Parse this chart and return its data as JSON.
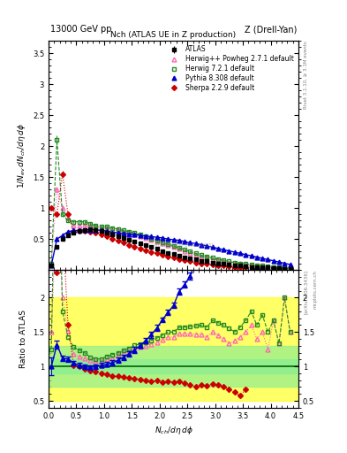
{
  "title_top_left": "13000 GeV pp",
  "title_top_right": "Z (Drell-Yan)",
  "plot_title": "Nch (ATLAS UE in Z production)",
  "xlabel": "$N_{ch}/d\\eta\\,d\\phi$",
  "ylabel_main": "$1/N_{ev}\\,dN_{ch}/d\\eta\\,d\\phi$",
  "ylabel_ratio": "Ratio to ATLAS",
  "right_label1": "Rivet 3.1.10, ≥ 3.1M events",
  "right_label2": "[arXiv:1306.3436]",
  "right_label3": "mcplots.cern.ch",
  "watermark": "ATL-PHYS-PUB-2021-736531",
  "xlim": [
    0,
    4.5
  ],
  "ylim_main": [
    0,
    3.7
  ],
  "ylim_ratio": [
    0.4,
    2.4
  ],
  "atlas_x": [
    0.05,
    0.15,
    0.25,
    0.35,
    0.45,
    0.55,
    0.65,
    0.75,
    0.85,
    0.95,
    1.05,
    1.15,
    1.25,
    1.35,
    1.45,
    1.55,
    1.65,
    1.75,
    1.85,
    1.95,
    2.05,
    2.15,
    2.25,
    2.35,
    2.45,
    2.55,
    2.65,
    2.75,
    2.85,
    2.95,
    3.05,
    3.15,
    3.25,
    3.35,
    3.45,
    3.55,
    3.65,
    3.75,
    3.85,
    3.95,
    4.05,
    4.15,
    4.25,
    4.35
  ],
  "atlas_y": [
    0.08,
    0.38,
    0.5,
    0.56,
    0.61,
    0.63,
    0.65,
    0.66,
    0.65,
    0.63,
    0.61,
    0.58,
    0.55,
    0.52,
    0.49,
    0.46,
    0.43,
    0.4,
    0.37,
    0.34,
    0.31,
    0.28,
    0.26,
    0.23,
    0.21,
    0.19,
    0.17,
    0.15,
    0.14,
    0.12,
    0.11,
    0.1,
    0.09,
    0.08,
    0.07,
    0.06,
    0.05,
    0.05,
    0.04,
    0.04,
    0.03,
    0.03,
    0.02,
    0.02
  ],
  "atlas_yerr": [
    0.008,
    0.015,
    0.015,
    0.015,
    0.015,
    0.015,
    0.015,
    0.015,
    0.015,
    0.015,
    0.012,
    0.012,
    0.012,
    0.012,
    0.012,
    0.01,
    0.01,
    0.01,
    0.01,
    0.01,
    0.008,
    0.008,
    0.008,
    0.008,
    0.008,
    0.006,
    0.006,
    0.006,
    0.006,
    0.006,
    0.005,
    0.005,
    0.005,
    0.005,
    0.005,
    0.004,
    0.004,
    0.004,
    0.004,
    0.004,
    0.003,
    0.003,
    0.003,
    0.003
  ],
  "hp_x": [
    0.05,
    0.15,
    0.25,
    0.35,
    0.45,
    0.55,
    0.65,
    0.75,
    0.85,
    0.95,
    1.05,
    1.15,
    1.25,
    1.35,
    1.45,
    1.55,
    1.65,
    1.75,
    1.85,
    1.95,
    2.05,
    2.15,
    2.25,
    2.35,
    2.45,
    2.55,
    2.65,
    2.75,
    2.85,
    2.95,
    3.05,
    3.15,
    3.25,
    3.35,
    3.45,
    3.55,
    3.65,
    3.75,
    3.85,
    3.95,
    4.05,
    4.15,
    4.25,
    4.35
  ],
  "hp_y": [
    0.12,
    1.3,
    1.0,
    0.85,
    0.72,
    0.72,
    0.73,
    0.72,
    0.7,
    0.68,
    0.67,
    0.65,
    0.64,
    0.62,
    0.6,
    0.58,
    0.55,
    0.52,
    0.49,
    0.46,
    0.43,
    0.4,
    0.37,
    0.34,
    0.31,
    0.28,
    0.25,
    0.22,
    0.2,
    0.18,
    0.16,
    0.14,
    0.12,
    0.11,
    0.1,
    0.09,
    0.08,
    0.07,
    0.06,
    0.05,
    0.05,
    0.04,
    0.04,
    0.03
  ],
  "hp_yerr": [
    0.01,
    0.05,
    0.04,
    0.03,
    0.02,
    0.02,
    0.02,
    0.02,
    0.02,
    0.02,
    0.02,
    0.02,
    0.02,
    0.02,
    0.02,
    0.02,
    0.015,
    0.015,
    0.015,
    0.015,
    0.01,
    0.01,
    0.01,
    0.01,
    0.01,
    0.01,
    0.01,
    0.01,
    0.01,
    0.01,
    0.008,
    0.008,
    0.008,
    0.008,
    0.008,
    0.006,
    0.006,
    0.006,
    0.006,
    0.006,
    0.005,
    0.005,
    0.005,
    0.005
  ],
  "h721_x": [
    0.05,
    0.15,
    0.25,
    0.35,
    0.45,
    0.55,
    0.65,
    0.75,
    0.85,
    0.95,
    1.05,
    1.15,
    1.25,
    1.35,
    1.45,
    1.55,
    1.65,
    1.75,
    1.85,
    1.95,
    2.05,
    2.15,
    2.25,
    2.35,
    2.45,
    2.55,
    2.65,
    2.75,
    2.85,
    2.95,
    3.05,
    3.15,
    3.25,
    3.35,
    3.45,
    3.55,
    3.65,
    3.75,
    3.85,
    3.95,
    4.05,
    4.15,
    4.25,
    4.35
  ],
  "h721_y": [
    0.1,
    2.1,
    0.9,
    0.8,
    0.78,
    0.78,
    0.78,
    0.75,
    0.72,
    0.7,
    0.7,
    0.68,
    0.66,
    0.64,
    0.62,
    0.6,
    0.57,
    0.54,
    0.51,
    0.48,
    0.45,
    0.42,
    0.39,
    0.36,
    0.33,
    0.3,
    0.27,
    0.24,
    0.22,
    0.2,
    0.18,
    0.16,
    0.14,
    0.12,
    0.11,
    0.1,
    0.09,
    0.08,
    0.07,
    0.06,
    0.05,
    0.04,
    0.04,
    0.03
  ],
  "h721_yerr": [
    0.01,
    0.08,
    0.04,
    0.03,
    0.02,
    0.02,
    0.02,
    0.02,
    0.02,
    0.02,
    0.02,
    0.02,
    0.02,
    0.02,
    0.02,
    0.02,
    0.015,
    0.015,
    0.015,
    0.015,
    0.01,
    0.01,
    0.01,
    0.01,
    0.01,
    0.01,
    0.01,
    0.01,
    0.01,
    0.01,
    0.008,
    0.008,
    0.008,
    0.008,
    0.008,
    0.006,
    0.006,
    0.006,
    0.006,
    0.006,
    0.005,
    0.005,
    0.005,
    0.005
  ],
  "py_x": [
    0.05,
    0.15,
    0.25,
    0.35,
    0.45,
    0.55,
    0.65,
    0.75,
    0.85,
    0.95,
    1.05,
    1.15,
    1.25,
    1.35,
    1.45,
    1.55,
    1.65,
    1.75,
    1.85,
    1.95,
    2.05,
    2.15,
    2.25,
    2.35,
    2.45,
    2.55,
    2.65,
    2.75,
    2.85,
    2.95,
    3.05,
    3.15,
    3.25,
    3.35,
    3.45,
    3.55,
    3.65,
    3.75,
    3.85,
    3.95,
    4.05,
    4.15,
    4.25,
    4.35
  ],
  "py_y": [
    0.08,
    0.5,
    0.56,
    0.62,
    0.64,
    0.64,
    0.65,
    0.65,
    0.65,
    0.64,
    0.63,
    0.61,
    0.6,
    0.59,
    0.58,
    0.57,
    0.56,
    0.55,
    0.54,
    0.53,
    0.52,
    0.5,
    0.49,
    0.48,
    0.46,
    0.44,
    0.43,
    0.41,
    0.39,
    0.37,
    0.35,
    0.33,
    0.31,
    0.29,
    0.27,
    0.25,
    0.23,
    0.21,
    0.19,
    0.17,
    0.15,
    0.13,
    0.11,
    0.09
  ],
  "py_yerr": [
    0.01,
    0.02,
    0.02,
    0.02,
    0.02,
    0.02,
    0.02,
    0.02,
    0.02,
    0.02,
    0.02,
    0.02,
    0.02,
    0.02,
    0.02,
    0.02,
    0.015,
    0.015,
    0.015,
    0.015,
    0.01,
    0.01,
    0.01,
    0.01,
    0.01,
    0.01,
    0.01,
    0.01,
    0.01,
    0.01,
    0.008,
    0.008,
    0.008,
    0.008,
    0.008,
    0.008,
    0.008,
    0.008,
    0.008,
    0.008,
    0.01,
    0.01,
    0.01,
    0.015
  ],
  "sh_x": [
    0.05,
    0.15,
    0.25,
    0.35,
    0.45,
    0.55,
    0.65,
    0.75,
    0.85,
    0.95,
    1.05,
    1.15,
    1.25,
    1.35,
    1.45,
    1.55,
    1.65,
    1.75,
    1.85,
    1.95,
    2.05,
    2.15,
    2.25,
    2.35,
    2.45,
    2.55,
    2.65,
    2.75,
    2.85,
    2.95,
    3.05,
    3.15,
    3.25,
    3.35,
    3.45,
    3.55
  ],
  "sh_y": [
    1.0,
    0.9,
    1.55,
    0.9,
    0.62,
    0.63,
    0.63,
    0.62,
    0.6,
    0.57,
    0.54,
    0.5,
    0.47,
    0.44,
    0.41,
    0.38,
    0.35,
    0.32,
    0.29,
    0.27,
    0.24,
    0.22,
    0.2,
    0.18,
    0.16,
    0.14,
    0.12,
    0.11,
    0.1,
    0.09,
    0.08,
    0.07,
    0.06,
    0.05,
    0.04,
    0.04
  ],
  "sh_yerr": [
    0.03,
    0.03,
    0.05,
    0.03,
    0.02,
    0.02,
    0.02,
    0.02,
    0.02,
    0.02,
    0.02,
    0.02,
    0.02,
    0.02,
    0.015,
    0.015,
    0.015,
    0.015,
    0.015,
    0.015,
    0.01,
    0.01,
    0.01,
    0.01,
    0.01,
    0.01,
    0.01,
    0.01,
    0.01,
    0.008,
    0.008,
    0.006,
    0.006,
    0.006,
    0.005,
    0.005
  ],
  "atlas_color": "#000000",
  "hp_color": "#ff69b4",
  "h721_color": "#228B22",
  "py_color": "#0000cc",
  "sh_color": "#cc0000",
  "green_band_y1": 0.9,
  "green_band_y2": 1.1,
  "lgreen_band_y1": 0.7,
  "lgreen_band_y2": 1.3,
  "yellow_band_y1": 0.5,
  "yellow_band_y2": 2.0
}
